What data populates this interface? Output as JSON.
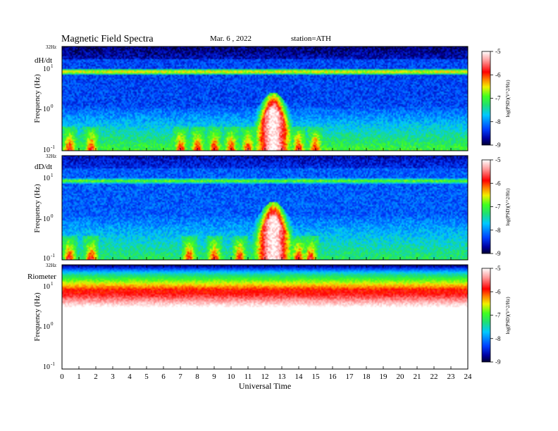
{
  "header": {
    "title": "Magnetic  Field  Spectra",
    "date": "Mar. 6  , 2022",
    "station": "station=ATH"
  },
  "chart_data": [
    {
      "type": "heatmap",
      "panel": "dH/dt",
      "ylabel": "Frequency  (Hz)",
      "y_scale": "log",
      "ylim_hz": [
        0.1,
        32
      ],
      "y_ticks": [
        "10",
        "10",
        "10"
      ],
      "y_tick_exponents": [
        "1",
        "0",
        "-1"
      ],
      "top_tick": "32Hz",
      "xlim": [
        0,
        24
      ],
      "colorbar": {
        "label": "log(PSD)(V^2/Hz)",
        "ticks": [
          "-5",
          "-6",
          "-7",
          "-8",
          "-9"
        ],
        "range": [
          -9,
          -5
        ]
      },
      "features": {
        "band_top_db": -8.6,
        "line_8hz_db": -6.6,
        "background_db": -8.3,
        "low_freq_floor_db": -7.0,
        "activity_peak_ut": 12.5,
        "activity_peak_db": -5.0,
        "bursts_ut": [
          0.4,
          1.7,
          7.0,
          8.0,
          9.0,
          10.0,
          11.0,
          14.0,
          15.0
        ]
      }
    },
    {
      "type": "heatmap",
      "panel": "dD/dt",
      "ylabel": "Frequency  (Hz)",
      "y_scale": "log",
      "ylim_hz": [
        0.1,
        32
      ],
      "y_ticks": [
        "10",
        "10",
        "10"
      ],
      "y_tick_exponents": [
        "1",
        "0",
        "-1"
      ],
      "top_tick": "32Hz",
      "xlim": [
        0,
        24
      ],
      "colorbar": {
        "label": "log(PSD)(V^2/Hz)",
        "ticks": [
          "-5",
          "-6",
          "-7",
          "-8",
          "-9"
        ],
        "range": [
          -9,
          -5
        ]
      },
      "features": {
        "band_top_db": -8.4,
        "line_8hz_db": -7.0,
        "background_db": -8.2,
        "low_freq_floor_db": -7.2,
        "activity_peak_ut": 12.5,
        "activity_peak_db": -5.0,
        "bursts_ut": [
          0.4,
          1.7,
          7.5,
          9.0,
          10.5,
          14.0,
          14.7
        ]
      }
    },
    {
      "type": "heatmap",
      "panel": "Riometer",
      "ylabel": "Frequency  (Hz)",
      "y_scale": "log",
      "ylim_hz": [
        0.1,
        32
      ],
      "y_ticks": [
        "10",
        "10",
        "10"
      ],
      "y_tick_exponents": [
        "1",
        "0",
        "-1"
      ],
      "top_tick": "32Hz",
      "xlim": [
        0,
        24
      ],
      "colorbar": {
        "label": "log(PSD)(V^2/Hz)",
        "ticks": [
          "-5",
          "-6",
          "-7",
          "-8",
          "-9"
        ],
        "range": [
          -9,
          -5
        ]
      },
      "features": {
        "top_db": -8.8,
        "band_peak_db": -6.0,
        "below_band_db": -4.8
      }
    }
  ],
  "x_axis": {
    "label": "Universal  Time",
    "ticks": [
      "0",
      "1",
      "2",
      "3",
      "4",
      "5",
      "6",
      "7",
      "8",
      "9",
      "10",
      "11",
      "12",
      "13",
      "14",
      "15",
      "16",
      "17",
      "18",
      "19",
      "20",
      "21",
      "22",
      "23",
      "24"
    ]
  },
  "colors": {
    "colormap": [
      "#000033",
      "#0000a0",
      "#0040ff",
      "#00c8ff",
      "#20e070",
      "#40ff20",
      "#f0f000",
      "#ff8000",
      "#ff0000",
      "#ff9898",
      "#ffffff"
    ]
  }
}
